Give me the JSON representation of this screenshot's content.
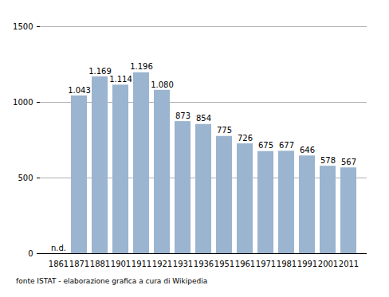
{
  "chart_data": {
    "type": "bar",
    "categories": [
      1861,
      1871,
      1881,
      1901,
      1911,
      1921,
      1931,
      1936,
      1951,
      1961,
      1971,
      1981,
      1991,
      2001,
      2011
    ],
    "values": [
      null,
      1043,
      1169,
      1114,
      1196,
      1080,
      873,
      854,
      775,
      726,
      675,
      677,
      646,
      578,
      567
    ],
    "value_labels": [
      "n.d.",
      "1.043",
      "1.169",
      "1.114",
      "1.196",
      "1.080",
      "873",
      "854",
      "775",
      "726",
      "675",
      "677",
      "646",
      "578",
      "567"
    ],
    "data_labels": true,
    "color": "#9bb4cf",
    "ylim": [
      0,
      1500
    ],
    "yticks": [
      0,
      500,
      1000,
      1500
    ],
    "grid": true,
    "caption": "fonte ISTAT - elaborazione grafica a cura di Wikipedia"
  }
}
